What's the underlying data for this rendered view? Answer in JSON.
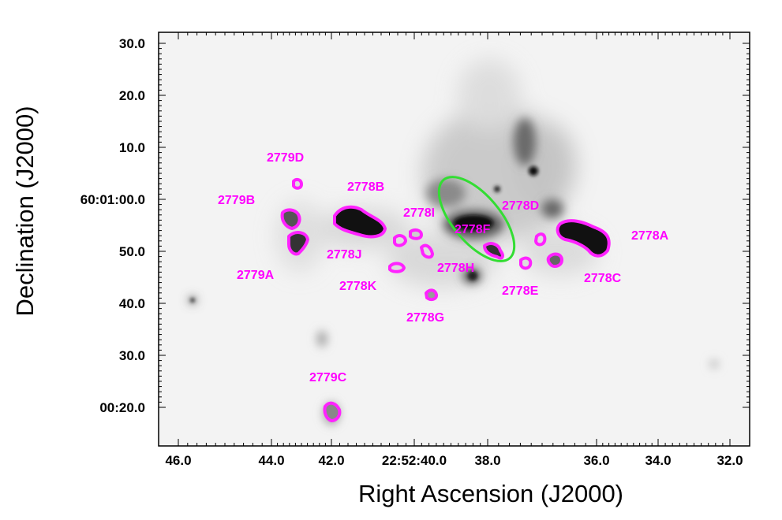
{
  "colors": {
    "contour": "#ff22ff",
    "label": "#ff00ff",
    "ellipse": "#33dd33",
    "background_image": "#e6e6e6"
  },
  "axes": {
    "xlabel": "Right Ascension (J2000)",
    "ylabel": "Declination (J2000)",
    "x_ticks": [
      "46.0",
      "44.0",
      "42.0",
      "22:52:40.0",
      "38.0",
      "36.0",
      "34.0",
      "32.0"
    ],
    "y_ticks": [
      "30.0",
      "20.0",
      "10.0",
      "60:01:00.0",
      "50.0",
      "40.0",
      "30.0",
      "00:20.0"
    ]
  },
  "sources": [
    {
      "id": "2778A"
    },
    {
      "id": "2778B"
    },
    {
      "id": "2778C"
    },
    {
      "id": "2778D"
    },
    {
      "id": "2778E"
    },
    {
      "id": "2778F"
    },
    {
      "id": "2778G"
    },
    {
      "id": "2778H"
    },
    {
      "id": "2778I"
    },
    {
      "id": "2778J"
    },
    {
      "id": "2778K"
    },
    {
      "id": "2779A"
    },
    {
      "id": "2779B"
    },
    {
      "id": "2779C"
    },
    {
      "id": "2779D"
    }
  ]
}
